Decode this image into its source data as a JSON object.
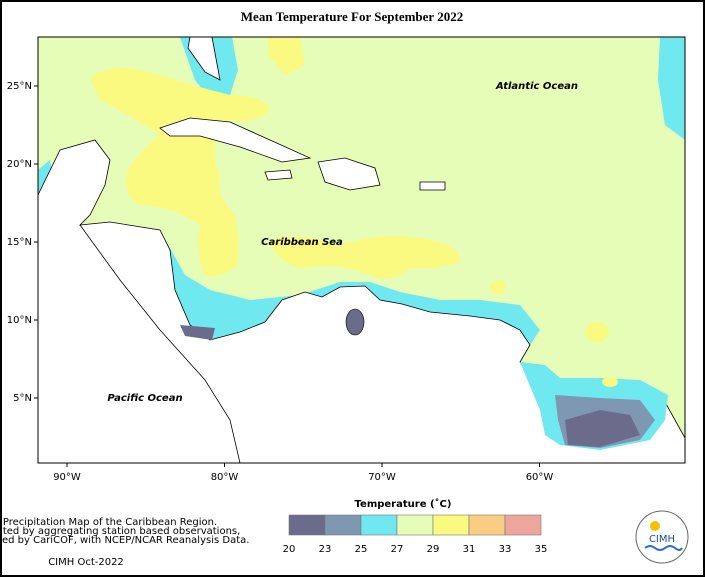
{
  "map": {
    "title": "Mean Temperature For September 2022",
    "labels": [
      "Atlantic Ocean",
      "Caribbean Sea",
      "Pacific Ocean"
    ],
    "lat_ticks": [
      {
        "value": 25,
        "label": "25°N"
      },
      {
        "value": 20,
        "label": "20°N"
      },
      {
        "value": 15,
        "label": "15°N"
      },
      {
        "value": 10,
        "label": "10°N"
      },
      {
        "value": 5,
        "label": "5°N"
      }
    ],
    "lon_ticks": [
      {
        "value": -90,
        "label": "90°W"
      },
      {
        "value": -80,
        "label": "80°W"
      },
      {
        "value": -70,
        "label": "70°W"
      },
      {
        "value": -60,
        "label": "60°W"
      }
    ],
    "legend": {
      "title": "Temperature (˚C)",
      "colors": [
        "#6b6b8c",
        "#7f98b2",
        "#70e8f0",
        "#e6fdb8",
        "#fafa80",
        "#f9cd82",
        "#eda69b"
      ],
      "labels": [
        20,
        23,
        25,
        27,
        29,
        31,
        33,
        35
      ]
    }
  },
  "footer": {
    "lines": [
      "Precipitation Map of the Caribbean Region.",
      "Created by aggregating station based observations,",
      "provided by CariCOF, with NCEP/NCAR Reanalysis Data."
    ],
    "credit": "CIMH Oct-2022",
    "logo": "CIMH"
  }
}
